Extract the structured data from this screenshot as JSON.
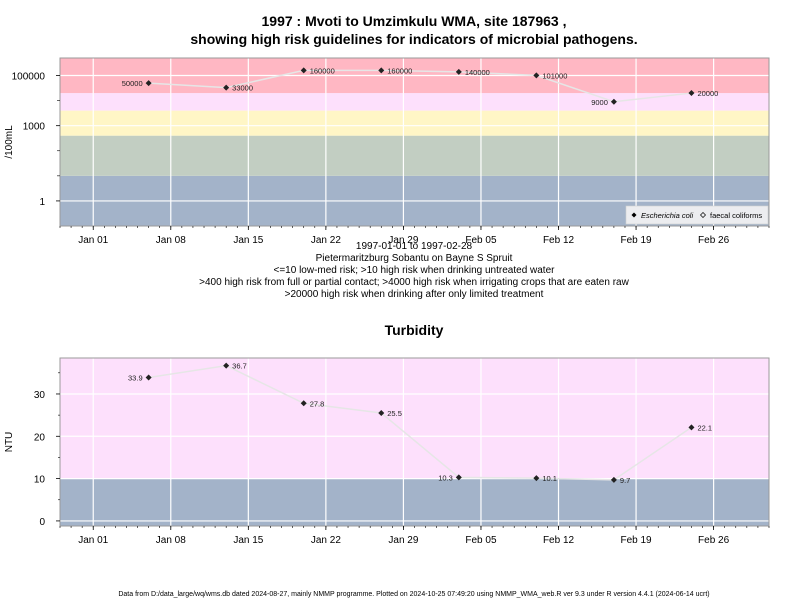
{
  "chart_data": [
    {
      "type": "scatter",
      "title_lines": [
        "1997 : Mvoti to Umzimkulu WMA, site 187963 ,",
        "showing high risk guidelines for indicators of microbial pathogens."
      ],
      "ylabel": "/100mL",
      "y_scale": "log10",
      "ylim": [
        0.1,
        500000
      ],
      "xlim": [
        "1996-12-29",
        "1997-03-03"
      ],
      "yticks": [
        {
          "value": 1,
          "label": "1"
        },
        {
          "value": 1000,
          "label": "1000"
        },
        {
          "value": 100000,
          "label": "100000"
        }
      ],
      "xticks": [
        {
          "date": "1997-01-01",
          "label": "Jan 01"
        },
        {
          "date": "1997-01-08",
          "label": "Jan 08"
        },
        {
          "date": "1997-01-15",
          "label": "Jan 15"
        },
        {
          "date": "1997-01-22",
          "label": "Jan 22"
        },
        {
          "date": "1997-01-29",
          "label": "Jan 29"
        },
        {
          "date": "1997-02-05",
          "label": "Feb 05"
        },
        {
          "date": "1997-02-12",
          "label": "Feb 12"
        },
        {
          "date": "1997-02-19",
          "label": "Feb 19"
        },
        {
          "date": "1997-02-26",
          "label": "Feb 26"
        }
      ],
      "bands": [
        {
          "from": 0.1,
          "to": 10,
          "color": "#a3b3c9"
        },
        {
          "from": 10,
          "to": 400,
          "color": "#c2cec2"
        },
        {
          "from": 400,
          "to": 4000,
          "color": "#fff6c6"
        },
        {
          "from": 4000,
          "to": 20000,
          "color": "#fde0fc"
        },
        {
          "from": 20000,
          "to": 500000,
          "color": "#ffb7c3"
        }
      ],
      "series": [
        {
          "name": "Escherichia coli",
          "marker": "filled-diamond",
          "points": [
            {
              "date": "1997-01-06",
              "value": 50000,
              "label": "50000"
            },
            {
              "date": "1997-01-13",
              "value": 33000,
              "label": "33000"
            },
            {
              "date": "1997-01-20",
              "value": 160000,
              "label": "160000"
            },
            {
              "date": "1997-01-27",
              "value": 160000,
              "label": "160000"
            },
            {
              "date": "1997-02-03",
              "value": 140000,
              "label": "140000"
            },
            {
              "date": "1997-02-10",
              "value": 101000,
              "label": "101000"
            },
            {
              "date": "1997-02-17",
              "value": 9000,
              "label": "9000"
            },
            {
              "date": "1997-02-24",
              "value": 20000,
              "label": "20000"
            }
          ]
        },
        {
          "name": "faecal coliforms",
          "marker": "open-diamond",
          "points": []
        }
      ],
      "legend_position": "bottom-right",
      "grid": true,
      "caption_lines": [
        "1997-01-01 to 1997-02-28",
        "Pietermaritzburg Sobantu on Bayne S Spruit",
        "<=10 low-med risk; >10 high risk when drinking untreated water",
        ">400 high risk from full or partial contact; >4000 high risk when irrigating crops that are eaten raw",
        ">20000 high risk when drinking after only limited treatment"
      ]
    },
    {
      "type": "scatter",
      "title": "Turbidity",
      "ylabel": "NTU",
      "ylim": [
        -1.2,
        38.5
      ],
      "xlim": [
        "1996-12-29",
        "1997-03-03"
      ],
      "yticks": [
        {
          "value": 0,
          "label": "0"
        },
        {
          "value": 10,
          "label": "10"
        },
        {
          "value": 20,
          "label": "20"
        },
        {
          "value": 30,
          "label": "30"
        }
      ],
      "xticks": [
        {
          "date": "1997-01-01",
          "label": "Jan 01"
        },
        {
          "date": "1997-01-08",
          "label": "Jan 08"
        },
        {
          "date": "1997-01-15",
          "label": "Jan 15"
        },
        {
          "date": "1997-01-22",
          "label": "Jan 22"
        },
        {
          "date": "1997-01-29",
          "label": "Jan 29"
        },
        {
          "date": "1997-02-05",
          "label": "Feb 05"
        },
        {
          "date": "1997-02-12",
          "label": "Feb 12"
        },
        {
          "date": "1997-02-19",
          "label": "Feb 19"
        },
        {
          "date": "1997-02-26",
          "label": "Feb 26"
        }
      ],
      "bands": [
        {
          "from": -1.2,
          "to": 10,
          "color": "#a3b3c9"
        },
        {
          "from": 10,
          "to": 38.5,
          "color": "#fde0fc"
        }
      ],
      "series": [
        {
          "marker": "filled-diamond",
          "points": [
            {
              "date": "1997-01-06",
              "value": 33.9,
              "label": "33.9"
            },
            {
              "date": "1997-01-13",
              "value": 36.7,
              "label": "36.7"
            },
            {
              "date": "1997-01-20",
              "value": 27.8,
              "label": "27.8"
            },
            {
              "date": "1997-01-27",
              "value": 25.5,
              "label": "25.5"
            },
            {
              "date": "1997-02-03",
              "value": 10.3,
              "label": "10.3"
            },
            {
              "date": "1997-02-10",
              "value": 10.1,
              "label": "10.1"
            },
            {
              "date": "1997-02-17",
              "value": 9.7,
              "label": "9.7"
            },
            {
              "date": "1997-02-24",
              "value": 22.1,
              "label": "22.1"
            }
          ]
        }
      ],
      "grid": true
    }
  ],
  "footer": "Data from D:/data_large/wq/wms.db dated 2024-08-27, mainly NMMP programme. Plotted on 2024-10-25 07:49:20 using NMMP_WMA_web.R ver 9.3 under R version 4.4.1 (2024-06-14 ucrt)"
}
